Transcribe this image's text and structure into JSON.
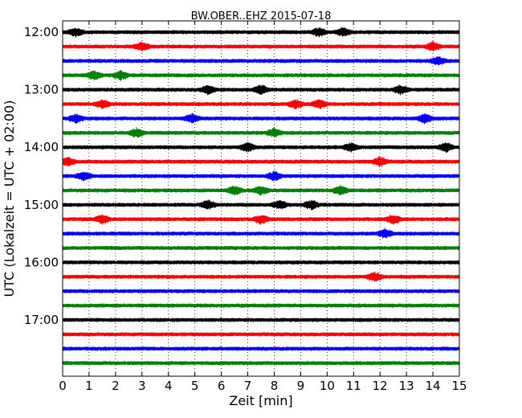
{
  "chart_data": {
    "type": "line",
    "title": "BW.OBER..EHZ 2015-07-18",
    "xlabel": "Zeit  [min]",
    "ylabel": "UTC (Lokalzeit = UTC + 02:00)",
    "xlim": [
      0,
      15
    ],
    "x_ticks": [
      0,
      1,
      2,
      3,
      4,
      5,
      6,
      7,
      8,
      9,
      10,
      11,
      12,
      13,
      14,
      15
    ],
    "y_tick_labels": [
      "12:00",
      "13:00",
      "14:00",
      "15:00",
      "16:00",
      "17:00"
    ],
    "grid": "dotted-vertical",
    "trace_interval_minutes": 15,
    "colors": [
      "#000000",
      "#ff0000",
      "#0000ff",
      "#008000"
    ],
    "traces": [
      {
        "start": "12:00",
        "events": [
          0.5,
          9.7,
          10.6
        ]
      },
      {
        "start": "12:15",
        "events": [
          3.0,
          14.0
        ]
      },
      {
        "start": "12:30",
        "events": [
          14.2
        ]
      },
      {
        "start": "12:45",
        "events": [
          1.2,
          2.2
        ]
      },
      {
        "start": "13:00",
        "events": [
          5.5,
          7.5,
          12.8
        ]
      },
      {
        "start": "13:15",
        "events": [
          1.5,
          8.8,
          9.7
        ]
      },
      {
        "start": "13:30",
        "events": [
          0.5,
          4.9,
          13.7
        ]
      },
      {
        "start": "13:45",
        "events": [
          2.8,
          8.0
        ]
      },
      {
        "start": "14:00",
        "events": [
          7.0,
          10.9,
          14.5
        ]
      },
      {
        "start": "14:15",
        "events": [
          0.2,
          12.0
        ]
      },
      {
        "start": "14:30",
        "events": [
          0.8,
          8.0
        ]
      },
      {
        "start": "14:45",
        "events": [
          6.5,
          7.5,
          10.5
        ]
      },
      {
        "start": "15:00",
        "events": [
          5.5,
          8.2,
          9.4
        ]
      },
      {
        "start": "15:15",
        "events": [
          1.5,
          7.5,
          12.5
        ]
      },
      {
        "start": "15:30",
        "events": [
          12.2
        ]
      },
      {
        "start": "15:45",
        "events": []
      },
      {
        "start": "16:00",
        "events": []
      },
      {
        "start": "16:15",
        "events": [
          11.8
        ]
      },
      {
        "start": "16:30",
        "events": []
      },
      {
        "start": "16:45",
        "events": []
      },
      {
        "start": "17:00",
        "events": []
      },
      {
        "start": "17:15",
        "events": []
      },
      {
        "start": "17:30",
        "events": []
      },
      {
        "start": "17:45",
        "events": []
      }
    ]
  }
}
